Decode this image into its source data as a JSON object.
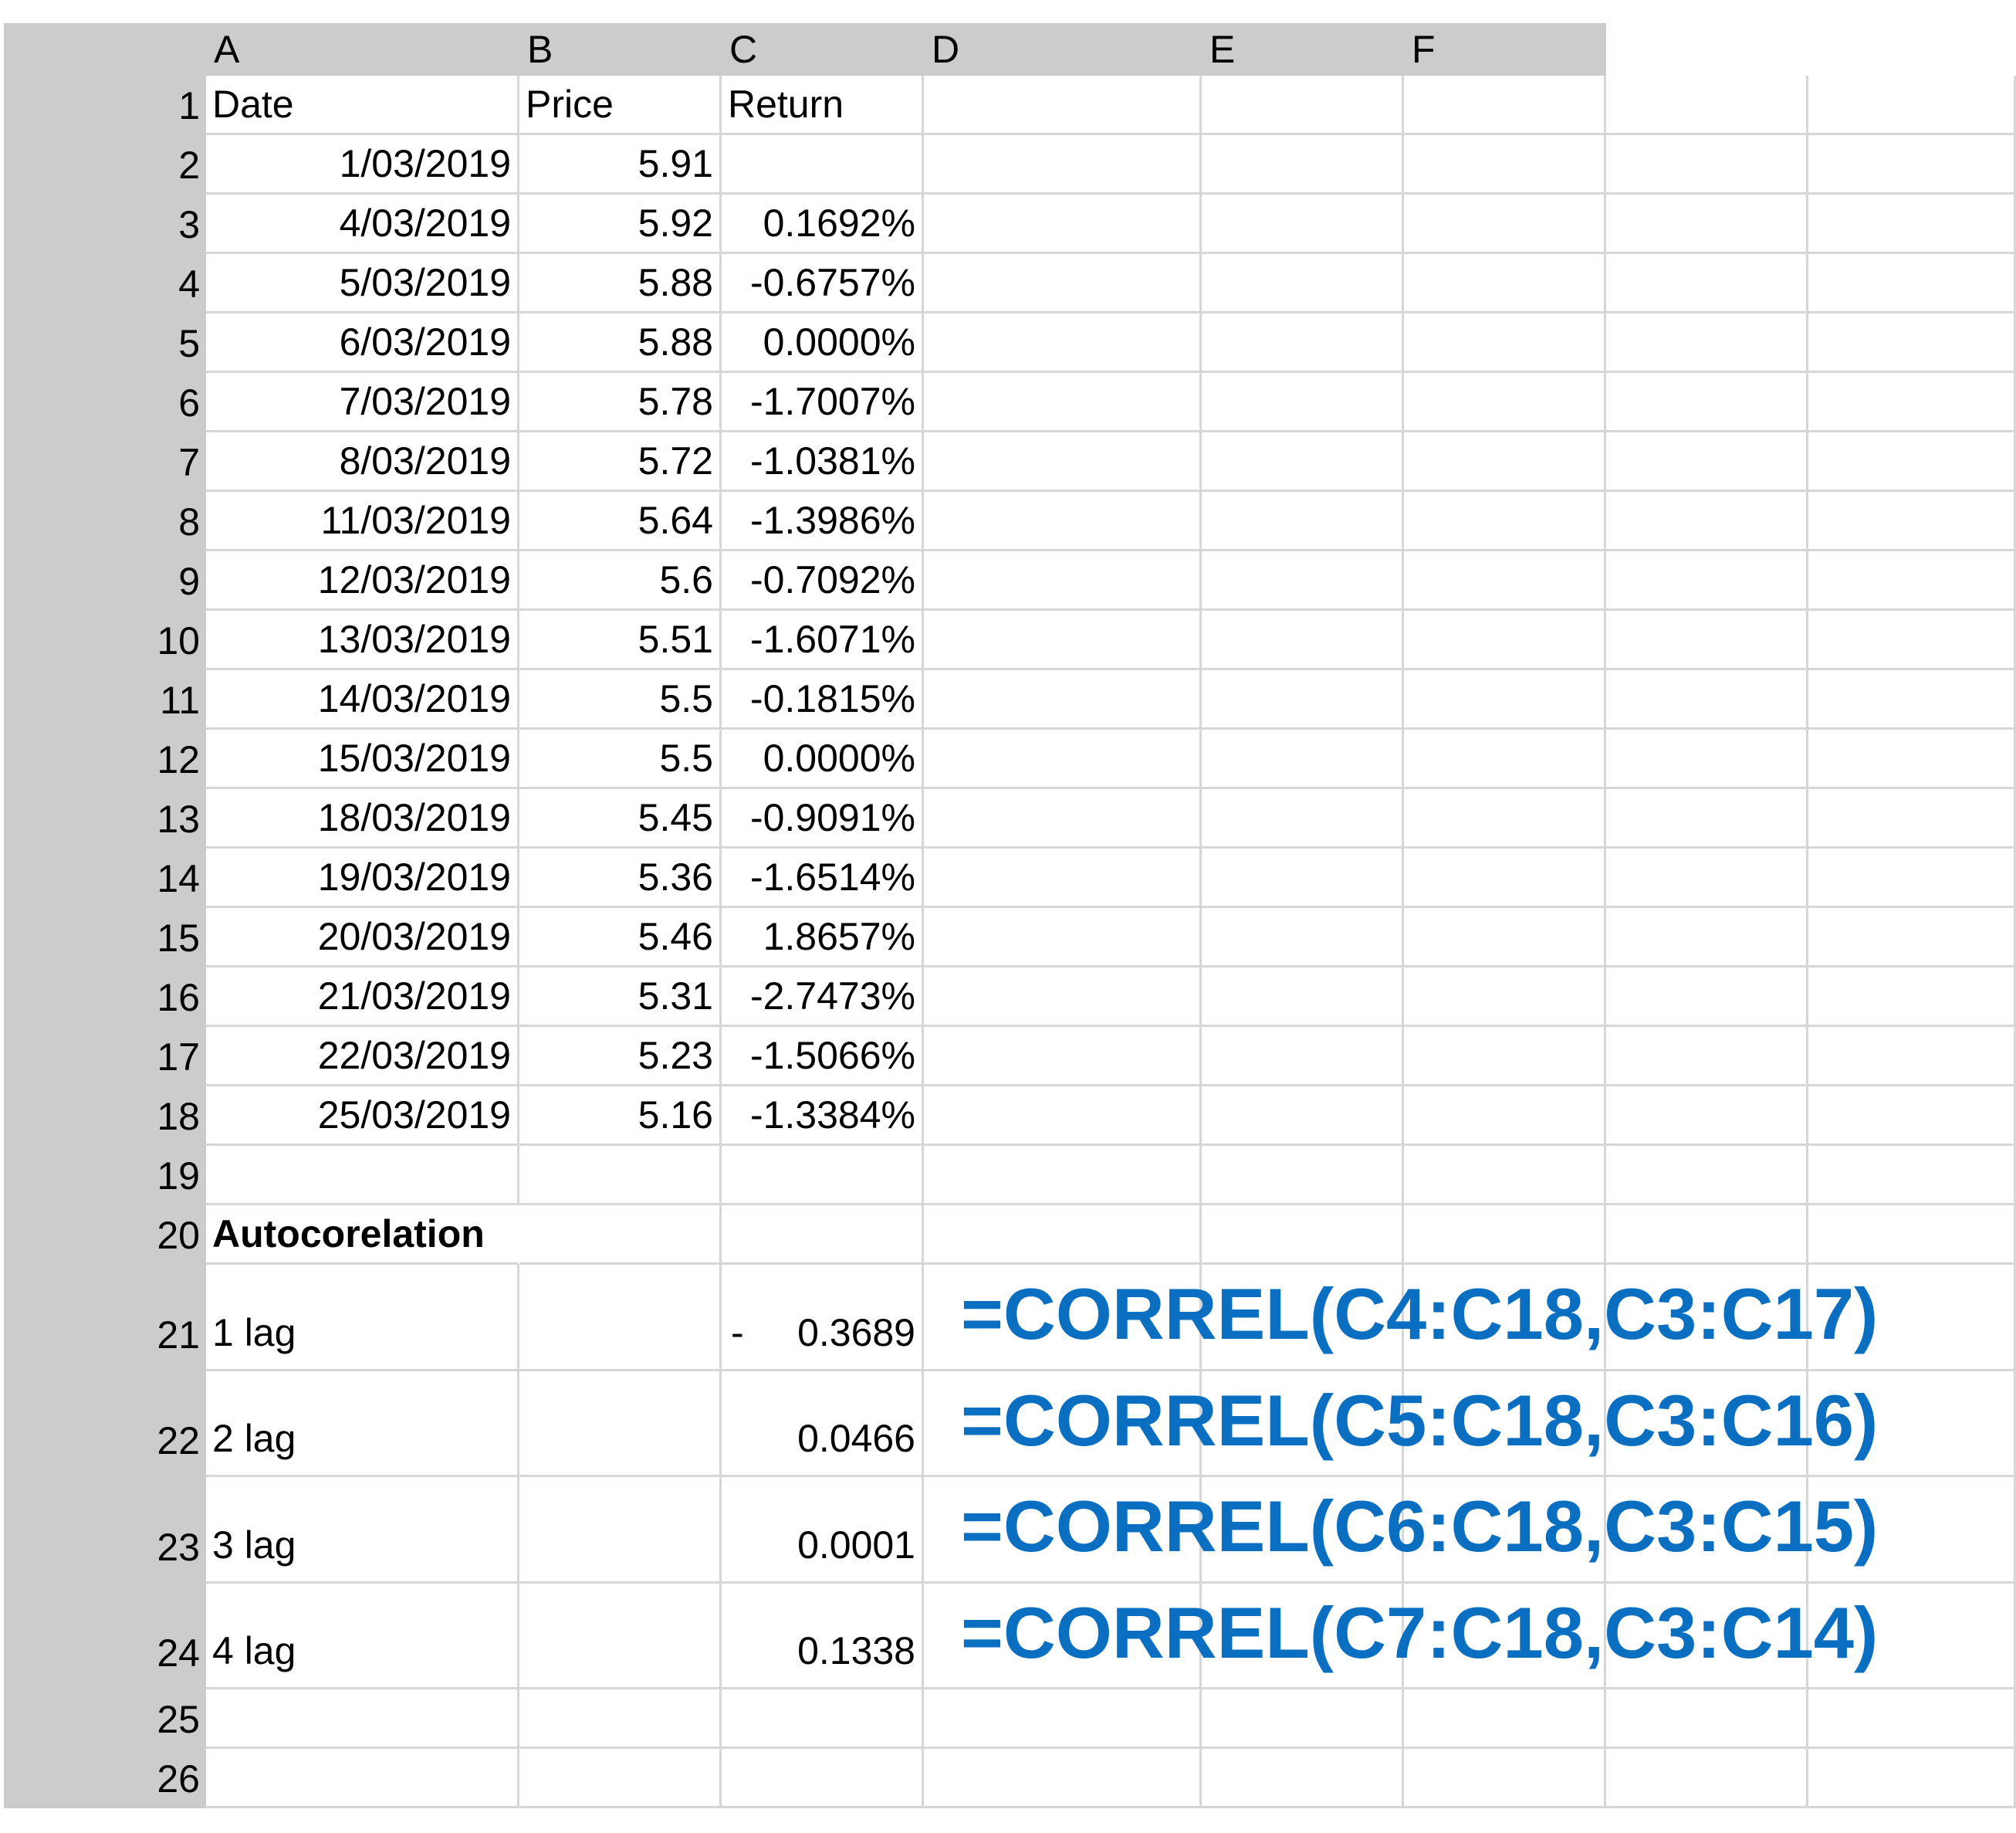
{
  "columns": [
    "A",
    "B",
    "C",
    "D",
    "E",
    "F"
  ],
  "rows": [
    {
      "n": "1",
      "a": "Date",
      "b": "Price",
      "c": "Return"
    },
    {
      "n": "2",
      "a": "1/03/2019",
      "b": "5.91",
      "c": ""
    },
    {
      "n": "3",
      "a": "4/03/2019",
      "b": "5.92",
      "c": "0.1692%"
    },
    {
      "n": "4",
      "a": "5/03/2019",
      "b": "5.88",
      "c": "-0.6757%"
    },
    {
      "n": "5",
      "a": "6/03/2019",
      "b": "5.88",
      "c": "0.0000%"
    },
    {
      "n": "6",
      "a": "7/03/2019",
      "b": "5.78",
      "c": "-1.7007%"
    },
    {
      "n": "7",
      "a": "8/03/2019",
      "b": "5.72",
      "c": "-1.0381%"
    },
    {
      "n": "8",
      "a": "11/03/2019",
      "b": "5.64",
      "c": "-1.3986%"
    },
    {
      "n": "9",
      "a": "12/03/2019",
      "b": "5.6",
      "c": "-0.7092%"
    },
    {
      "n": "10",
      "a": "13/03/2019",
      "b": "5.51",
      "c": "-1.6071%"
    },
    {
      "n": "11",
      "a": "14/03/2019",
      "b": "5.5",
      "c": "-0.1815%"
    },
    {
      "n": "12",
      "a": "15/03/2019",
      "b": "5.5",
      "c": "0.0000%"
    },
    {
      "n": "13",
      "a": "18/03/2019",
      "b": "5.45",
      "c": "-0.9091%"
    },
    {
      "n": "14",
      "a": "19/03/2019",
      "b": "5.36",
      "c": "-1.6514%"
    },
    {
      "n": "15",
      "a": "20/03/2019",
      "b": "5.46",
      "c": "1.8657%"
    },
    {
      "n": "16",
      "a": "21/03/2019",
      "b": "5.31",
      "c": "-2.7473%"
    },
    {
      "n": "17",
      "a": "22/03/2019",
      "b": "5.23",
      "c": "-1.5066%"
    },
    {
      "n": "18",
      "a": "25/03/2019",
      "b": "5.16",
      "c": "-1.3384%"
    },
    {
      "n": "19",
      "a": "",
      "b": "",
      "c": ""
    },
    {
      "n": "20",
      "a": "Autocorelation",
      "b": "",
      "c": ""
    },
    {
      "n": "21",
      "a": "1 lag",
      "b": "",
      "c": "0.3689",
      "c_sign": "-",
      "formula": "=CORREL(C4:C18,C3:C17)"
    },
    {
      "n": "22",
      "a": "2 lag",
      "b": "",
      "c": "0.0466",
      "formula": "=CORREL(C5:C18,C3:C16)"
    },
    {
      "n": "23",
      "a": "3 lag",
      "b": "",
      "c": "0.0001",
      "formula": "=CORREL(C6:C18,C3:C15)"
    },
    {
      "n": "24",
      "a": "4 lag",
      "b": "",
      "c": "0.1338",
      "formula": "=CORREL(C7:C18,C3:C14)"
    },
    {
      "n": "25",
      "a": "",
      "b": "",
      "c": ""
    },
    {
      "n": "26",
      "a": "",
      "b": "",
      "c": ""
    }
  ],
  "colors": {
    "header_bg": "#cdcbcd",
    "gridline": "#d6d6d6",
    "formula_text": "#0b6fc1"
  }
}
